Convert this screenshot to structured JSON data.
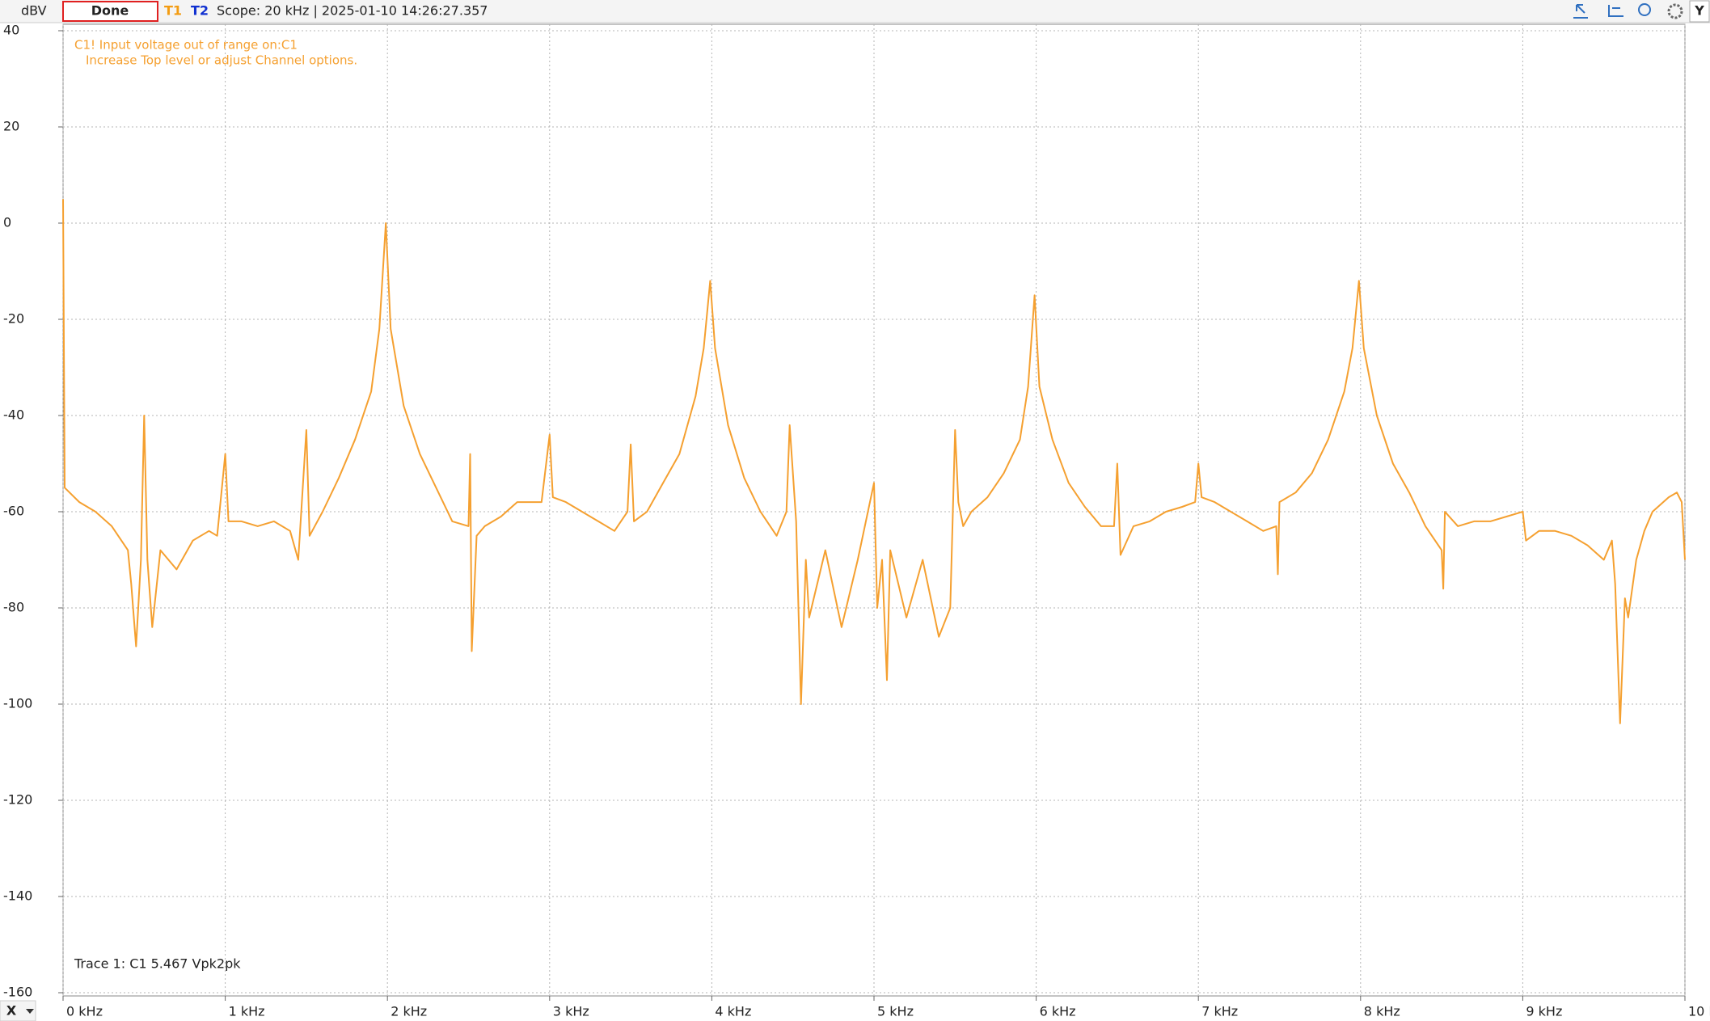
{
  "ui": {
    "done": "Done",
    "t2": "T2",
    "scope": "Scope: 20 kHz | 2025-01-10 14:26:27.357",
    "x_button": "X",
    "y_button": "Y"
  },
  "chart_data": {
    "type": "line",
    "y_label": "dBV",
    "annotations": [
      "C1! Input voltage out of range on:C1",
      "Increase Top level or adjust Channel options.",
      "Trace 1: C1 5.467 Vpk2pk"
    ],
    "xlim": [
      0,
      10
    ],
    "ylim": [
      -160,
      40
    ],
    "grid": true,
    "xticks": [
      {
        "value": 0,
        "label": "0 kHz"
      },
      {
        "value": 1,
        "label": "1 kHz"
      },
      {
        "value": 2,
        "label": "2 kHz"
      },
      {
        "value": 3,
        "label": "3 kHz"
      },
      {
        "value": 4,
        "label": "4 kHz"
      },
      {
        "value": 5,
        "label": "5 kHz"
      },
      {
        "value": 6,
        "label": "6 kHz"
      },
      {
        "value": 7,
        "label": "7 kHz"
      },
      {
        "value": 8,
        "label": "8 kHz"
      },
      {
        "value": 9,
        "label": "9 kHz"
      },
      {
        "value": 10,
        "label": "10 kHz"
      }
    ],
    "yticks": [
      40,
      20,
      0,
      -20,
      -40,
      -60,
      -80,
      -100,
      -120,
      -140,
      -160
    ],
    "x": [
      0,
      0.01,
      0.1,
      0.2,
      0.3,
      0.4,
      0.42,
      0.45,
      0.48,
      0.5,
      0.52,
      0.55,
      0.6,
      0.7,
      0.8,
      0.9,
      0.95,
      1.0,
      1.02,
      1.1,
      1.2,
      1.3,
      1.4,
      1.45,
      1.5,
      1.52,
      1.6,
      1.7,
      1.8,
      1.9,
      1.95,
      1.99,
      2.02,
      2.1,
      2.2,
      2.3,
      2.4,
      2.5,
      2.51,
      2.52,
      2.55,
      2.6,
      2.7,
      2.8,
      2.95,
      3.0,
      3.02,
      3.1,
      3.2,
      3.3,
      3.4,
      3.48,
      3.5,
      3.52,
      3.6,
      3.7,
      3.8,
      3.9,
      3.95,
      3.99,
      4.02,
      4.1,
      4.2,
      4.3,
      4.4,
      4.46,
      4.48,
      4.52,
      4.55,
      4.58,
      4.6,
      4.7,
      4.8,
      4.9,
      5.0,
      5.02,
      5.05,
      5.08,
      5.1,
      5.2,
      5.3,
      5.4,
      5.47,
      5.5,
      5.52,
      5.55,
      5.6,
      5.7,
      5.8,
      5.9,
      5.95,
      5.99,
      6.02,
      6.1,
      6.2,
      6.3,
      6.4,
      6.48,
      6.5,
      6.52,
      6.6,
      6.7,
      6.8,
      6.9,
      6.98,
      7.0,
      7.02,
      7.1,
      7.2,
      7.3,
      7.4,
      7.48,
      7.49,
      7.5,
      7.6,
      7.7,
      7.8,
      7.9,
      7.95,
      7.99,
      8.02,
      8.1,
      8.2,
      8.3,
      8.4,
      8.5,
      8.51,
      8.52,
      8.6,
      8.7,
      8.8,
      8.9,
      9.0,
      9.02,
      9.1,
      9.2,
      9.3,
      9.4,
      9.5,
      9.55,
      9.57,
      9.6,
      9.63,
      9.65,
      9.7,
      9.75,
      9.8,
      9.9,
      9.95,
      9.98,
      10.0
    ],
    "series": [
      {
        "name": "T1",
        "color": "#f5a030",
        "values": [
          5,
          -55,
          -58,
          -60,
          -63,
          -68,
          -75,
          -88,
          -70,
          -40,
          -70,
          -84,
          -68,
          -72,
          -66,
          -64,
          -65,
          -48,
          -62,
          -62,
          -63,
          -62,
          -64,
          -70,
          -43,
          -65,
          -60,
          -53,
          -45,
          -35,
          -22,
          0,
          -22,
          -38,
          -48,
          -55,
          -62,
          -63,
          -48,
          -89,
          -65,
          -63,
          -61,
          -58,
          -58,
          -44,
          -57,
          -58,
          -60,
          -62,
          -64,
          -60,
          -46,
          -62,
          -60,
          -54,
          -48,
          -36,
          -26,
          -12,
          -26,
          -42,
          -53,
          -60,
          -65,
          -60,
          -42,
          -62,
          -100,
          -70,
          -82,
          -68,
          -84,
          -70,
          -54,
          -80,
          -70,
          -95,
          -68,
          -82,
          -70,
          -86,
          -80,
          -43,
          -58,
          -63,
          -60,
          -57,
          -52,
          -45,
          -34,
          -15,
          -34,
          -45,
          -54,
          -59,
          -63,
          -63,
          -50,
          -69,
          -63,
          -62,
          -60,
          -59,
          -58,
          -50,
          -57,
          -58,
          -60,
          -62,
          -64,
          -63,
          -73,
          -58,
          -56,
          -52,
          -45,
          -35,
          -26,
          -12,
          -26,
          -40,
          -50,
          -56,
          -63,
          -68,
          -76,
          -60,
          -63,
          -62,
          -62,
          -61,
          -60,
          -66,
          -64,
          -64,
          -65,
          -67,
          -70,
          -66,
          -75,
          -104,
          -78,
          -82,
          -70,
          -64,
          -60,
          -57,
          -56,
          -58,
          -70
        ]
      }
    ]
  }
}
